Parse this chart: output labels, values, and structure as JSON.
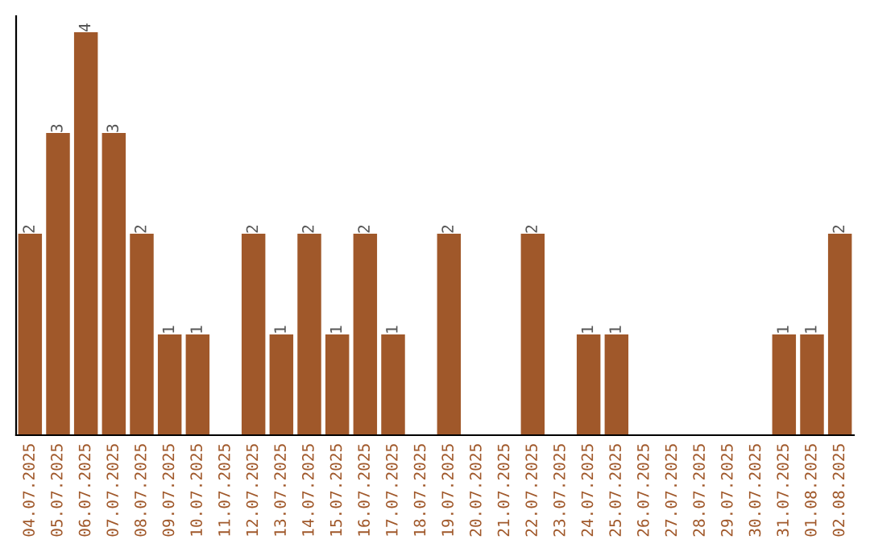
{
  "chart_data": {
    "type": "bar",
    "categories": [
      "04.07.2025",
      "05.07.2025",
      "06.07.2025",
      "07.07.2025",
      "08.07.2025",
      "09.07.2025",
      "10.07.2025",
      "11.07.2025",
      "12.07.2025",
      "13.07.2025",
      "14.07.2025",
      "15.07.2025",
      "16.07.2025",
      "17.07.2025",
      "18.07.2025",
      "19.07.2025",
      "20.07.2025",
      "21.07.2025",
      "22.07.2025",
      "23.07.2025",
      "24.07.2025",
      "25.07.2025",
      "26.07.2025",
      "27.07.2025",
      "28.07.2025",
      "29.07.2025",
      "30.07.2025",
      "31.07.2025",
      "01.08.2025",
      "02.08.2025"
    ],
    "values": [
      2,
      3,
      4,
      3,
      2,
      1,
      1,
      0,
      2,
      1,
      2,
      1,
      2,
      1,
      0,
      2,
      0,
      0,
      2,
      0,
      1,
      1,
      0,
      0,
      0,
      0,
      0,
      1,
      1,
      2
    ],
    "value_labels": [
      "2",
      "3",
      "4",
      "3",
      "2",
      "1",
      "1",
      null,
      "2",
      "1",
      "2",
      "1",
      "2",
      "1",
      null,
      "2",
      null,
      null,
      "2",
      null,
      "1",
      "1",
      null,
      null,
      null,
      null,
      null,
      "1",
      "1",
      "2"
    ],
    "color": "#a0582a",
    "tick_labels": "x",
    "grid": false,
    "legend": false
  }
}
